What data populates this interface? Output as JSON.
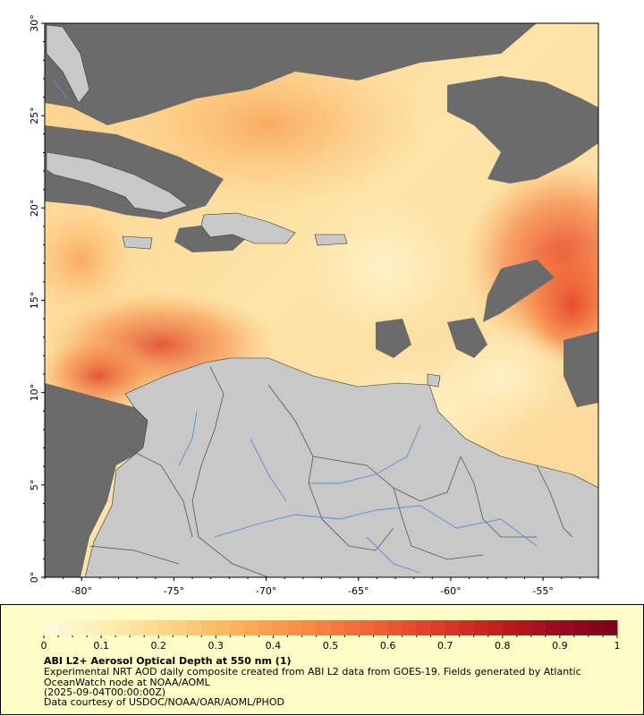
{
  "map": {
    "extent": {
      "lon": [
        -82,
        -52
      ],
      "lat": [
        0,
        30
      ]
    },
    "lat_ticks": [
      "0°",
      "5°",
      "10°",
      "15°",
      "20°",
      "25°",
      "30°"
    ],
    "lon_ticks": [
      "-80°",
      "-75°",
      "-70°",
      "-65°",
      "-60°",
      "-55°"
    ],
    "colors": {
      "land": "#c8c8c8",
      "no_data": "#6b6b6b",
      "rivers": "#5b8fd0",
      "borders": "#555555",
      "coast": "#333333"
    }
  },
  "legend": {
    "colorbar": {
      "min": 0,
      "max": 1,
      "tick_labels": [
        "0",
        "0.1",
        "0.2",
        "0.3",
        "0.4",
        "0.5",
        "0.6",
        "0.7",
        "0.8",
        "0.9",
        "1"
      ],
      "color_stops": [
        "#fffbe2",
        "#ffedb0",
        "#fdd384",
        "#fcb35c",
        "#fa8f45",
        "#f3683a",
        "#e3412c",
        "#c8201e",
        "#a10b20",
        "#7a001d"
      ]
    },
    "title": "ABI L2+ Aerosol Optical Depth at 550 nm (1)",
    "description": "Experimental NRT AOD daily composite created from ABI L2 data from GOES-19. Fields generated by Atlantic OceanWatch node at NOAA/AOML",
    "timestamp": "(2025-09-04T00:00:00Z)",
    "credit": "Data courtesy of USDOC/NOAA/OAR/AOML/PHOD"
  }
}
